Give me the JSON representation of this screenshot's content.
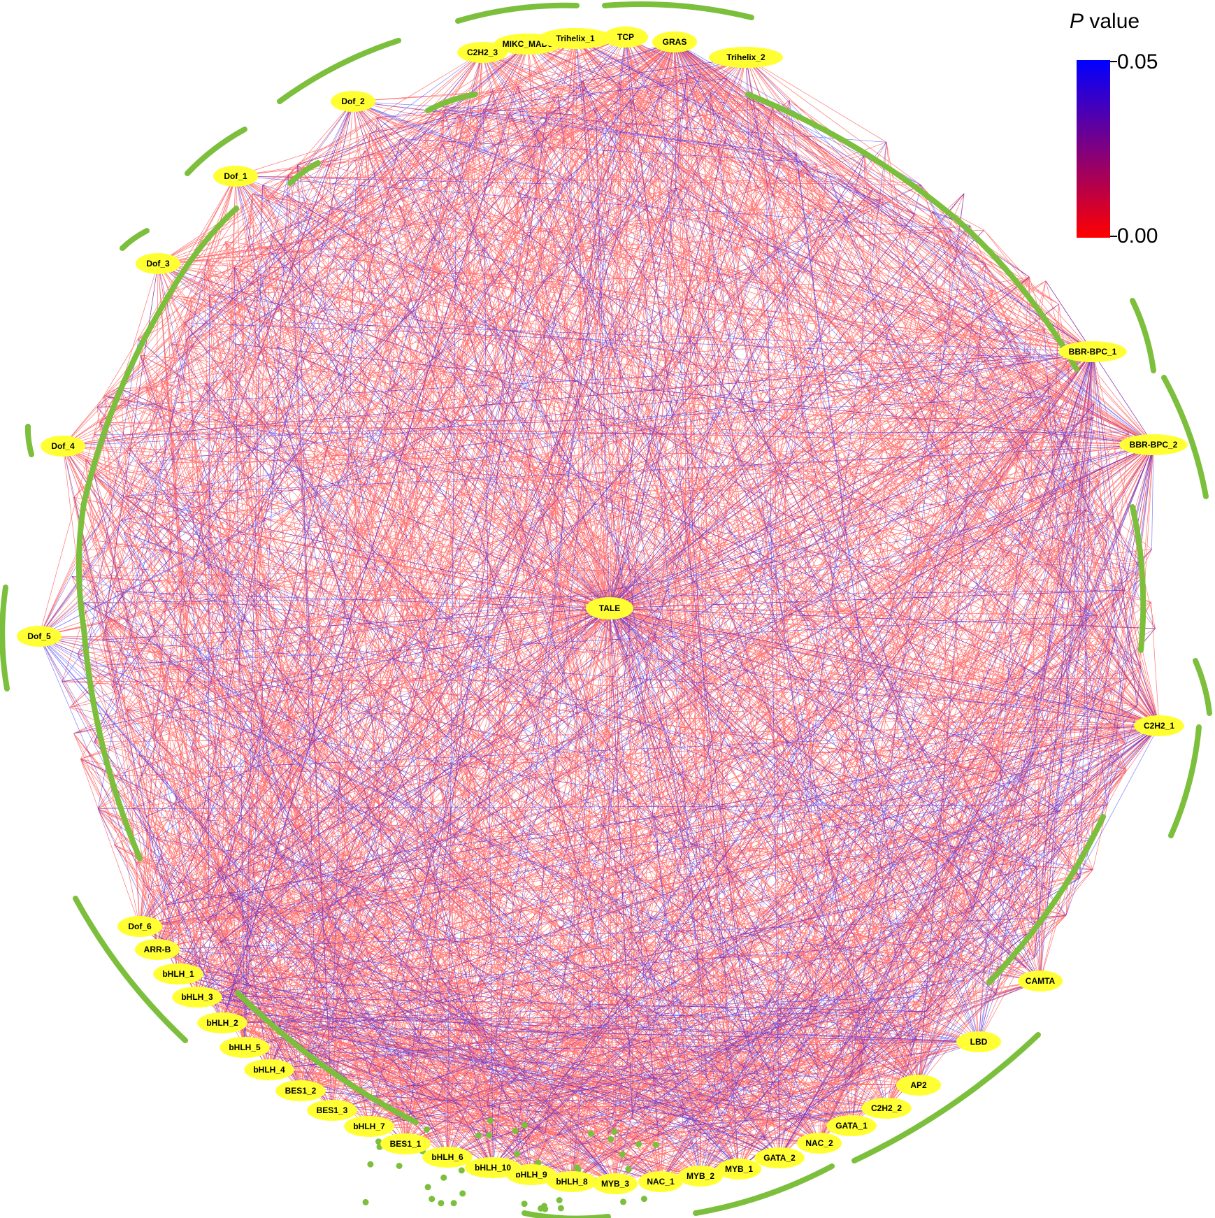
{
  "legend": {
    "title_italic": "P",
    "title_rest": " value",
    "max_label": "0.05",
    "min_label": "0.00",
    "color_high": "#0000ff",
    "color_low": "#ff0000"
  },
  "colors": {
    "tf_node_fill": "#ffff33",
    "target_node": "#7cbf3c",
    "edge_significant": "#ff0000",
    "edge_marginal": "#0000ff"
  },
  "hub": {
    "label": "TALE"
  },
  "tf_nodes": [
    "C2H2_3",
    "MIKC_MADS",
    "Trihelix_1",
    "TCP",
    "GRAS",
    "Trihelix_2",
    "Dof_2",
    "Dof_1",
    "Dof_3",
    "Dof_4",
    "Dof_5",
    "BBR-BPC_1",
    "BBR-BPC_2",
    "C2H2_1",
    "CAMTA",
    "LBD",
    "AP2",
    "C2H2_2",
    "GATA_1",
    "NAC_2",
    "GATA_2",
    "MYB_1",
    "MYB_2",
    "NAC_1",
    "MYB_3",
    "bHLH_8",
    "bHLH_9",
    "bHLH_10",
    "bHLH_6",
    "BES1_1",
    "bHLH_7",
    "BES1_3",
    "BES1_2",
    "bHLH_4",
    "bHLH_5",
    "bHLH_2",
    "bHLH_3",
    "bHLH_1",
    "ARR-B",
    "Dof_6"
  ]
}
